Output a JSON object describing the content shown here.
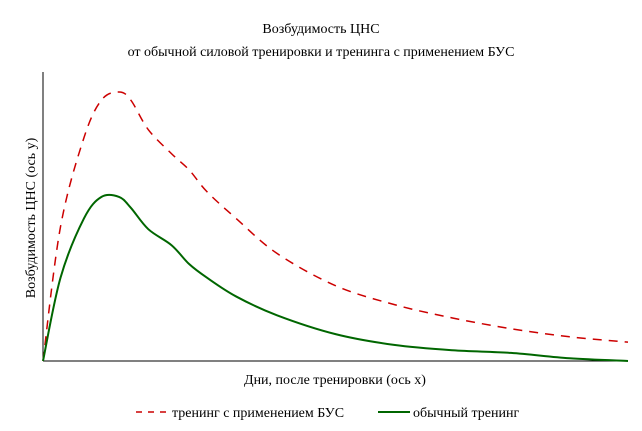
{
  "chart_data": {
    "type": "line",
    "title": "Возбудимость ЦНС",
    "subtitle": "от обычной силовой тренировки и тренинга с применением БУС",
    "xlabel": "Дни, после тренировки (ось x)",
    "ylabel": "Возбудимость ЦНС (ось y)",
    "grid": false,
    "legend_position": "bottom",
    "x_ticks_shown": false,
    "y_ticks_shown": false,
    "xlim": [
      0,
      100
    ],
    "ylim": [
      0,
      100
    ],
    "x": [
      0,
      3,
      7,
      10,
      13,
      15,
      18,
      22,
      25,
      28,
      33,
      40,
      50,
      60,
      70,
      80,
      90,
      100
    ],
    "series": [
      {
        "name": "тренинг с применением БУС",
        "color": "#cc0000",
        "style": "dashed",
        "values": [
          0,
          50,
          83,
          97,
          100,
          97,
          86,
          77,
          71,
          63,
          53,
          40,
          28,
          21,
          16,
          12,
          9,
          7
        ]
      },
      {
        "name": "обычный тренинг",
        "color": "#006600",
        "style": "solid",
        "values": [
          0,
          31,
          53,
          61,
          61,
          57,
          49,
          43,
          36,
          31,
          24,
          17,
          10,
          6,
          4,
          3,
          1,
          0
        ]
      }
    ]
  }
}
